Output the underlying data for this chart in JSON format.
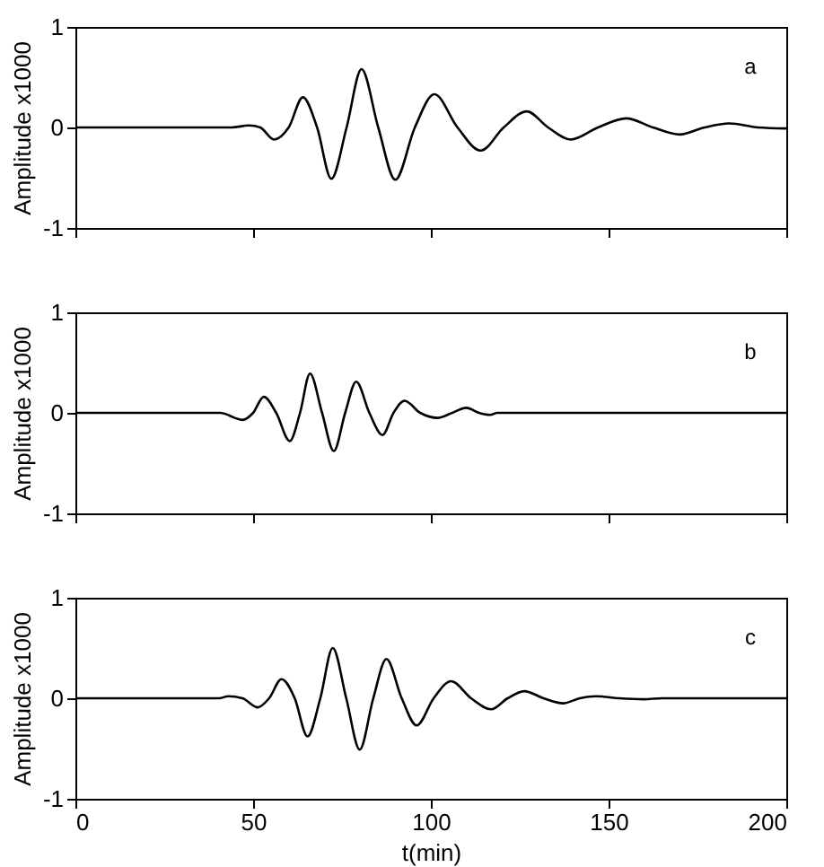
{
  "chart_data": [
    {
      "type": "line",
      "ylabel": "Amplitude x1000",
      "annotations": [
        "a"
      ],
      "xlim": [
        0,
        200
      ],
      "xticks": [
        0,
        50,
        100,
        150,
        200
      ],
      "ylim": [
        -1,
        1
      ],
      "yticks": [
        -1,
        0,
        1
      ],
      "tick_labels": "y",
      "grid": false,
      "marker": "none",
      "line_style": "solid",
      "series": [
        {
          "color": "#000000",
          "x": [
            0,
            44,
            48.8,
            52,
            55.9,
            60,
            64,
            68,
            72,
            76.3,
            80.5,
            85.2,
            90,
            95.5,
            101,
            107.5,
            114,
            120.5,
            127,
            133,
            139.4,
            147,
            155,
            162.5,
            170,
            177,
            184,
            192,
            200
          ],
          "values": [
            0,
            0,
            0.02,
            0,
            -0.12,
            0,
            0.3,
            0,
            -0.51,
            0,
            0.58,
            0,
            -0.52,
            0,
            0.33,
            0,
            -0.23,
            0,
            0.16,
            0,
            -0.12,
            0,
            0.09,
            0,
            -0.07,
            0,
            0.04,
            0,
            -0.01
          ]
        }
      ]
    },
    {
      "type": "line",
      "ylabel": "Amplitude x1000",
      "annotations": [
        "b"
      ],
      "xlim": [
        0,
        200
      ],
      "xticks": [
        0,
        50,
        100,
        150,
        200
      ],
      "ylim": [
        -1,
        1
      ],
      "yticks": [
        -1,
        0,
        1
      ],
      "tick_labels": "y",
      "grid": false,
      "marker": "none",
      "line_style": "solid",
      "series": [
        {
          "color": "#000000",
          "x": [
            0,
            40.7,
            47,
            50,
            53,
            56.5,
            60.3,
            63.2,
            66,
            69.4,
            72.7,
            75.9,
            79,
            82.7,
            86.4,
            89.5,
            92.6,
            97,
            101.9,
            106,
            110,
            113.5,
            116.7,
            118.7,
            200
          ],
          "values": [
            0,
            0,
            -0.07,
            0,
            0.16,
            0,
            -0.28,
            0,
            0.39,
            0,
            -0.38,
            0,
            0.31,
            0,
            -0.22,
            0,
            0.12,
            0,
            -0.05,
            0,
            0.05,
            0,
            -0.02,
            0,
            0
          ]
        }
      ]
    },
    {
      "type": "line",
      "xlabel": "t(min)",
      "ylabel": "Amplitude x1000",
      "annotations": [
        "c"
      ],
      "xlim": [
        0,
        200
      ],
      "xticks": [
        0,
        50,
        100,
        150,
        200
      ],
      "ylim": [
        -1,
        1
      ],
      "yticks": [
        -1,
        0,
        1
      ],
      "grid": false,
      "marker": "none",
      "line_style": "solid",
      "series": [
        {
          "color": "#000000",
          "x": [
            0,
            40.4,
            43,
            47,
            51.3,
            54.5,
            58,
            61.7,
            65.3,
            68.9,
            72.4,
            76.2,
            80,
            83.8,
            87.5,
            91.8,
            96,
            100.8,
            105.7,
            111.3,
            117,
            121.6,
            126.3,
            131.7,
            137.2,
            141.9,
            146.5,
            153,
            160,
            165,
            200
          ],
          "values": [
            0,
            0,
            0.02,
            0,
            -0.09,
            0,
            0.19,
            0,
            -0.38,
            0,
            0.5,
            0,
            -0.51,
            0,
            0.39,
            0,
            -0.27,
            0,
            0.17,
            0,
            -0.11,
            0,
            0.07,
            0,
            -0.05,
            0,
            0.02,
            0,
            -0.01,
            0,
            0
          ]
        }
      ]
    }
  ]
}
